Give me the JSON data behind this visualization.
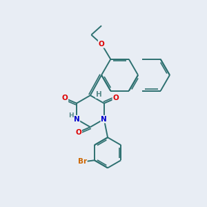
{
  "background_color": "#e8edf4",
  "bond_color": "#2d7070",
  "bond_width": 1.4,
  "atom_colors": {
    "O": "#dd0000",
    "N": "#0000cc",
    "Br": "#cc6600",
    "H": "#558888",
    "C": "#2d7070"
  },
  "font_size": 7.5,
  "dbo": 0.08
}
